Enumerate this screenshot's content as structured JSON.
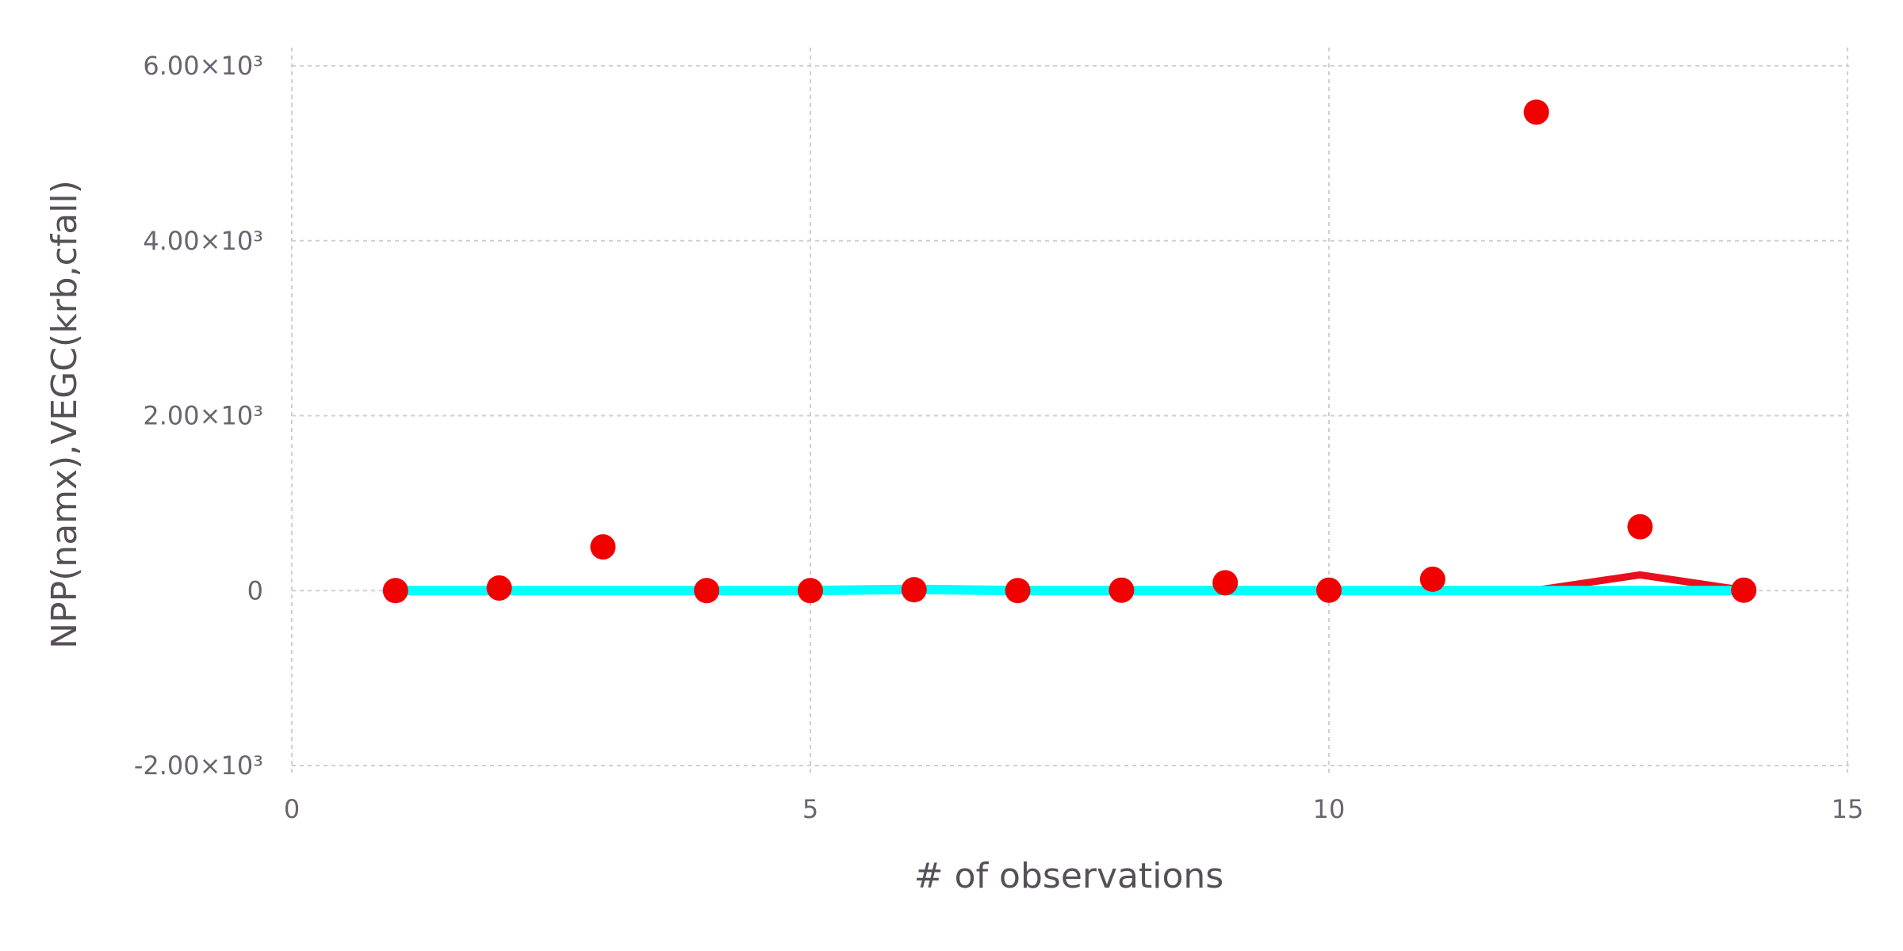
{
  "chart_data": {
    "type": "scatter",
    "title": "",
    "xlabel": "# of observations",
    "ylabel": "NPP(namx),VEGC(krb,cfall)",
    "xlim": [
      0,
      15
    ],
    "ylim": [
      -2000,
      6000
    ],
    "x_ticks": [
      0,
      5,
      10,
      15
    ],
    "x_tick_labels": [
      "0",
      "5",
      "10",
      "15"
    ],
    "y_ticks": [
      -2000,
      0,
      2000,
      4000,
      6000
    ],
    "y_tick_labels": [
      "-2.00×10³",
      "0",
      "2.00×10³",
      "4.00×10³",
      "6.00×10³"
    ],
    "grid": true,
    "legend": "none",
    "series": [
      {
        "kind": "points",
        "color": "#f20000",
        "x": [
          1,
          2,
          3,
          4,
          5,
          6,
          7,
          8,
          9,
          10,
          11,
          12,
          13,
          14
        ],
        "y": [
          0,
          30,
          500,
          0,
          0,
          10,
          0,
          5,
          90,
          5,
          130,
          5470,
          730,
          5
        ]
      },
      {
        "kind": "line",
        "color": "#e8101c",
        "x": [
          1,
          2,
          3,
          4,
          5,
          6,
          7,
          8,
          9,
          10,
          11,
          12,
          13,
          14
        ],
        "y": [
          5,
          5,
          5,
          5,
          5,
          5,
          5,
          5,
          5,
          5,
          5,
          5,
          180,
          5
        ]
      },
      {
        "kind": "line",
        "color": "#00ffff",
        "x": [
          1,
          2,
          3,
          4,
          5,
          6,
          7,
          8,
          9,
          10,
          11,
          12,
          13,
          14
        ],
        "y": [
          0,
          0,
          0,
          0,
          0,
          15,
          0,
          0,
          0,
          0,
          0,
          0,
          0,
          0
        ]
      }
    ]
  }
}
